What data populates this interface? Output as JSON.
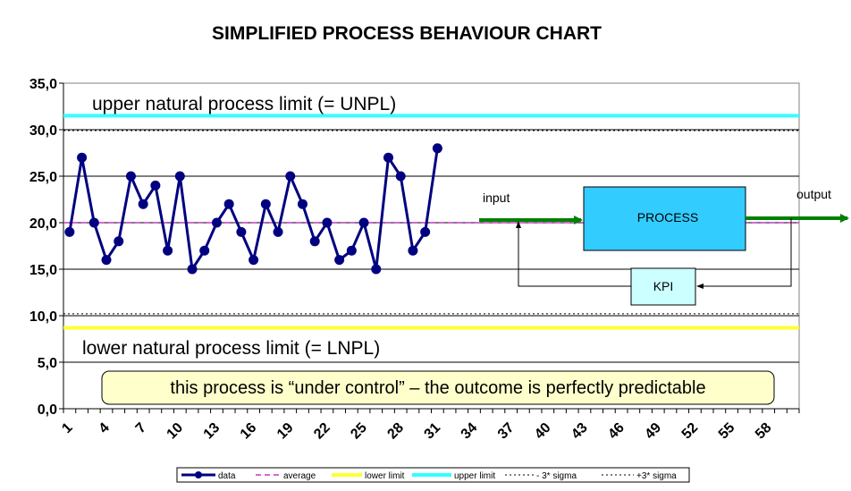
{
  "chart_data": {
    "type": "line",
    "title": "SIMPLIFIED PROCESS BEHAVIOUR CHART",
    "xlabel": "",
    "ylabel": "",
    "ylim": [
      0,
      35
    ],
    "y_tick_labels": [
      "0,0",
      "5,0",
      "10,0",
      "15,0",
      "20,0",
      "25,0",
      "30,0",
      "35,0"
    ],
    "x_categories_count": 60,
    "x_tick_labels": [
      "1",
      "4",
      "7",
      "10",
      "13",
      "16",
      "19",
      "22",
      "25",
      "28",
      "31",
      "34",
      "37",
      "40",
      "43",
      "46",
      "49",
      "52",
      "55",
      "58"
    ],
    "grid": true,
    "legend_position": "bottom",
    "series": [
      {
        "name": "data",
        "color": "#000080",
        "values": [
          19,
          27,
          20,
          16,
          18,
          25,
          22,
          24,
          17,
          25,
          15,
          17,
          20,
          22,
          19,
          16,
          22,
          19,
          25,
          22,
          18,
          20,
          16,
          17,
          20,
          15,
          27,
          25,
          17,
          19,
          28
        ]
      },
      {
        "name": "average",
        "color": "#cc33cc",
        "value": 20
      },
      {
        "name": "lower limit",
        "color": "#ffff33",
        "value": 8.7
      },
      {
        "name": "upper limit",
        "color": "#33ffff",
        "value": 31.5
      },
      {
        "name": "- 3* sigma",
        "color": "#000000",
        "value": 10.2
      },
      {
        "name": "+3* sigma",
        "color": "#000000",
        "value": 29.9
      }
    ],
    "annotations": {
      "upper_label": "upper natural process limit (= UNPL)",
      "lower_label": "lower natural process limit (= LNPL)",
      "callout": "this process is “under control” – the outcome is perfectly predictable"
    },
    "diagram": {
      "input": "input",
      "output": "output",
      "process": "PROCESS",
      "kpi": "KPI",
      "process_color": "#33ccff",
      "kpi_color": "#ccffff",
      "arrow_color": "#008000"
    }
  }
}
